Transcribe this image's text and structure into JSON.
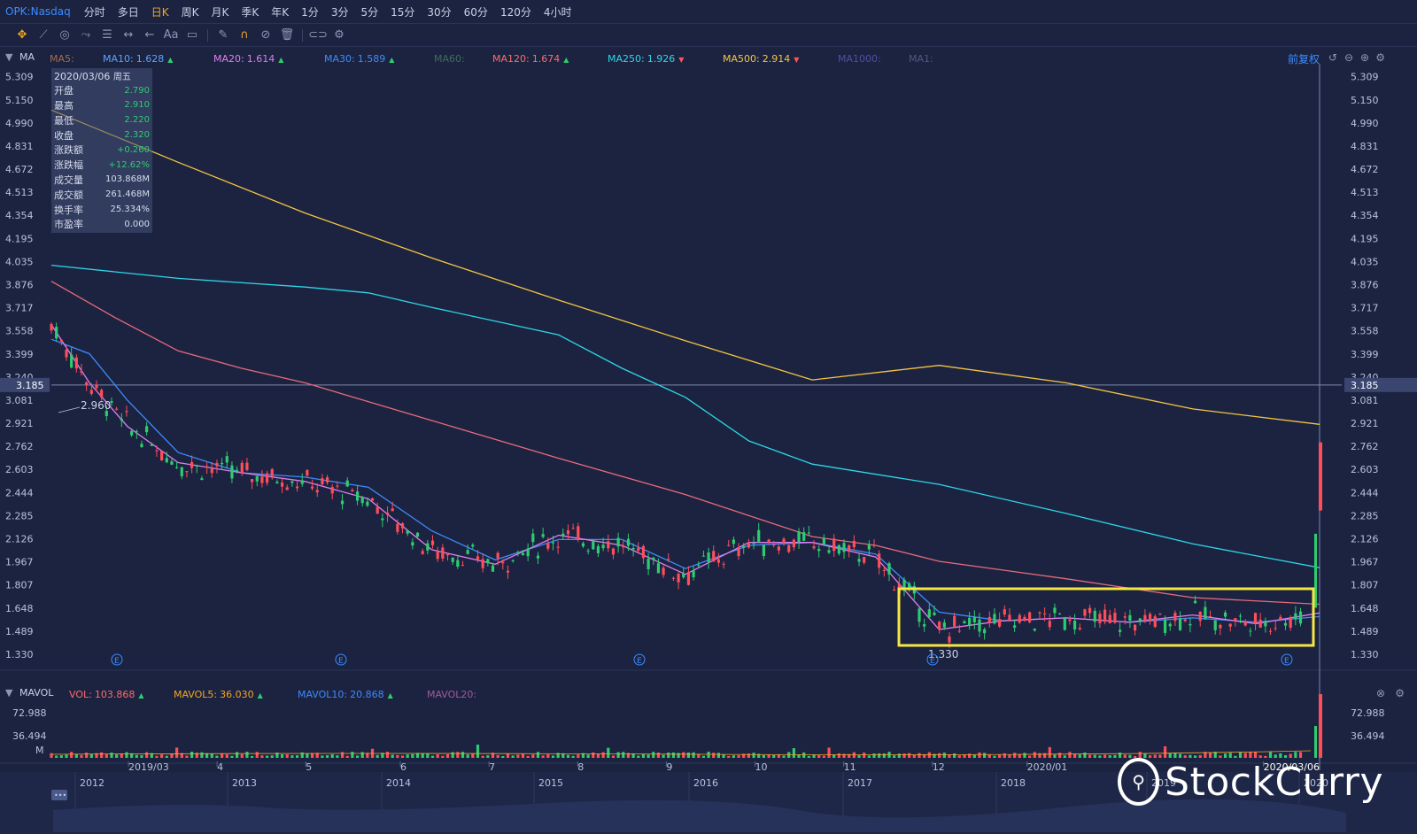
{
  "topbar": {
    "symbol": "OPK:Nasdaq",
    "periods": [
      "分时",
      "多日",
      "日K",
      "周K",
      "月K",
      "季K",
      "年K",
      "1分",
      "3分",
      "5分",
      "15分",
      "30分",
      "60分",
      "120分",
      "4小时"
    ],
    "active_period": "日K"
  },
  "toolbar": {
    "icons": [
      "move-icon",
      "draw-line-icon",
      "shape-icon",
      "pattern-icon",
      "fib-icon",
      "measure-icon",
      "arrow-icon",
      "text-icon",
      "note-icon",
      "pencil-icon",
      "magnet-icon",
      "hide-icon",
      "trash-icon",
      "link-icon",
      "settings-icon"
    ],
    "text_tool_label": "Aa"
  },
  "ma_bar": {
    "label": "MA",
    "items": [
      {
        "name": "MA5:",
        "value": "",
        "color": "#a86b4a",
        "trend": ""
      },
      {
        "name": "MA10:",
        "value": "1.628",
        "color": "#5aa2ff",
        "trend": "up"
      },
      {
        "name": "MA20:",
        "value": "1.614",
        "color": "#e07ef0",
        "trend": "up"
      },
      {
        "name": "MA30:",
        "value": "1.589",
        "color": "#3d8bff",
        "trend": "up"
      },
      {
        "name": "MA60:",
        "value": "",
        "color": "#3e6e5a",
        "trend": ""
      },
      {
        "name": "MA120:",
        "value": "1.674",
        "color": "#ff6b6b",
        "trend": "up"
      },
      {
        "name": "MA250:",
        "value": "1.926",
        "color": "#2fd6e8",
        "trend": "down"
      },
      {
        "name": "MA500:",
        "value": "2.914",
        "color": "#f5c542",
        "trend": "down"
      },
      {
        "name": "MA1000:",
        "value": "",
        "color": "#4f4fa8",
        "trend": ""
      },
      {
        "name": "MA1:",
        "value": "",
        "color": "#4f5a80",
        "trend": ""
      }
    ],
    "adjust_label": "前复权"
  },
  "infobox": {
    "date": "2020/03/06",
    "weekday": "周五",
    "rows": [
      {
        "label": "开盘",
        "value": "2.790",
        "green": true
      },
      {
        "label": "最高",
        "value": "2.910",
        "green": true
      },
      {
        "label": "最低",
        "value": "2.220",
        "green": true
      },
      {
        "label": "收盘",
        "value": "2.320",
        "green": true
      },
      {
        "label": "涨跌额",
        "value": "+0.260",
        "green": true
      },
      {
        "label": "涨跌幅",
        "value": "+12.62%",
        "green": true
      },
      {
        "label": "成交量",
        "value": "103.868M",
        "green": false
      },
      {
        "label": "成交额",
        "value": "261.468M",
        "green": false
      },
      {
        "label": "换手率",
        "value": "25.334%",
        "green": false
      },
      {
        "label": "市盈率",
        "value": "0.000",
        "green": false
      }
    ]
  },
  "vol_bar": {
    "label": "MAVOL",
    "items": [
      {
        "name": "VOL:",
        "value": "103.868",
        "color": "#ff6b6b",
        "trend": "up"
      },
      {
        "name": "MAVOL5:",
        "value": "36.030",
        "color": "#f5a623",
        "trend": "up"
      },
      {
        "name": "MAVOL10:",
        "value": "20.868",
        "color": "#3d8bff",
        "trend": "up"
      },
      {
        "name": "MAVOL20:",
        "value": "",
        "color": "#a05a9a",
        "trend": ""
      }
    ]
  },
  "chart_data": {
    "type": "line",
    "title": "",
    "ylim": [
      1.25,
      5.35
    ],
    "y_ticks": [
      5.309,
      5.15,
      4.99,
      4.831,
      4.672,
      4.513,
      4.354,
      4.195,
      4.035,
      3.876,
      3.717,
      3.558,
      3.399,
      3.24,
      3.081,
      2.921,
      2.762,
      2.603,
      2.444,
      2.285,
      2.126,
      1.967,
      1.807,
      1.648,
      1.489,
      1.33
    ],
    "y_tick_labels": [
      "5.309",
      "5.150",
      "4.990",
      "4.831",
      "4.672",
      "4.513",
      "4.354",
      "4.195",
      "4.035",
      "3.876",
      "3.717",
      "3.558",
      "3.399",
      "3.240",
      "3.081",
      "2.921",
      "2.762",
      "2.603",
      "2.444",
      "2.285",
      "2.126",
      "1.967",
      "1.807",
      "1.648",
      "1.489",
      "1.330"
    ],
    "crosshair_price": "3.185",
    "x_month_labels": [
      "2019/03",
      "4",
      "5",
      "6",
      "7",
      "8",
      "9",
      "10",
      "11",
      "12",
      "2020/01",
      "2020/03/06"
    ],
    "x_month_positions": [
      0.0,
      0.075,
      0.15,
      0.23,
      0.305,
      0.38,
      0.455,
      0.53,
      0.605,
      0.68,
      0.76,
      0.96
    ],
    "x_year_labels": [
      "2012",
      "2013",
      "2014",
      "2015",
      "2016",
      "2017",
      "2018",
      "2019",
      "2020"
    ],
    "max_label": "2.960",
    "min_label": "1.330",
    "series": [
      {
        "name": "MA500",
        "color": "#f5c542",
        "x": [
          0,
          0.1,
          0.2,
          0.3,
          0.4,
          0.5,
          0.6,
          0.7,
          0.8,
          0.9,
          1.0
        ],
        "values": [
          5.08,
          4.72,
          4.37,
          4.06,
          3.77,
          3.49,
          3.22,
          3.32,
          3.2,
          3.02,
          2.914
        ]
      },
      {
        "name": "MA250",
        "color": "#2fd6e8",
        "x": [
          0,
          0.1,
          0.2,
          0.25,
          0.3,
          0.4,
          0.45,
          0.5,
          0.55,
          0.6,
          0.7,
          0.8,
          0.9,
          1.0
        ],
        "values": [
          4.01,
          3.92,
          3.86,
          3.82,
          3.72,
          3.53,
          3.3,
          3.1,
          2.8,
          2.64,
          2.5,
          2.3,
          2.09,
          1.926
        ]
      },
      {
        "name": "MA120",
        "color": "#e86a7a",
        "x": [
          0,
          0.05,
          0.1,
          0.15,
          0.2,
          0.3,
          0.4,
          0.5,
          0.6,
          0.65,
          0.7,
          0.8,
          0.9,
          1.0
        ],
        "values": [
          3.9,
          3.65,
          3.42,
          3.3,
          3.2,
          2.94,
          2.68,
          2.43,
          2.14,
          2.08,
          1.97,
          1.85,
          1.72,
          1.674
        ]
      },
      {
        "name": "MA30",
        "color": "#3d8bff",
        "x": [
          0,
          0.03,
          0.06,
          0.1,
          0.15,
          0.2,
          0.25,
          0.3,
          0.35,
          0.4,
          0.45,
          0.5,
          0.55,
          0.6,
          0.65,
          0.7,
          0.75,
          0.8,
          0.85,
          0.9,
          0.95,
          1.0
        ],
        "values": [
          3.5,
          3.4,
          3.08,
          2.72,
          2.58,
          2.55,
          2.48,
          2.18,
          1.98,
          2.12,
          2.12,
          1.92,
          2.08,
          2.1,
          2.02,
          1.62,
          1.56,
          1.58,
          1.55,
          1.58,
          1.55,
          1.589
        ]
      },
      {
        "name": "MA20",
        "color": "#e07ef0",
        "x": [
          0,
          0.03,
          0.06,
          0.1,
          0.15,
          0.2,
          0.25,
          0.3,
          0.35,
          0.4,
          0.45,
          0.5,
          0.55,
          0.6,
          0.65,
          0.7,
          0.75,
          0.8,
          0.85,
          0.9,
          0.95,
          1.0
        ],
        "values": [
          3.6,
          3.2,
          2.9,
          2.65,
          2.58,
          2.52,
          2.4,
          2.05,
          1.95,
          2.15,
          2.08,
          1.88,
          2.1,
          2.1,
          2.0,
          1.5,
          1.56,
          1.58,
          1.55,
          1.6,
          1.54,
          1.614
        ]
      }
    ]
  },
  "volume_data": {
    "y_tick_labels": [
      "72.988",
      "36.494",
      "M"
    ],
    "last_volume": "103.868"
  },
  "watermark": "StockCurry"
}
